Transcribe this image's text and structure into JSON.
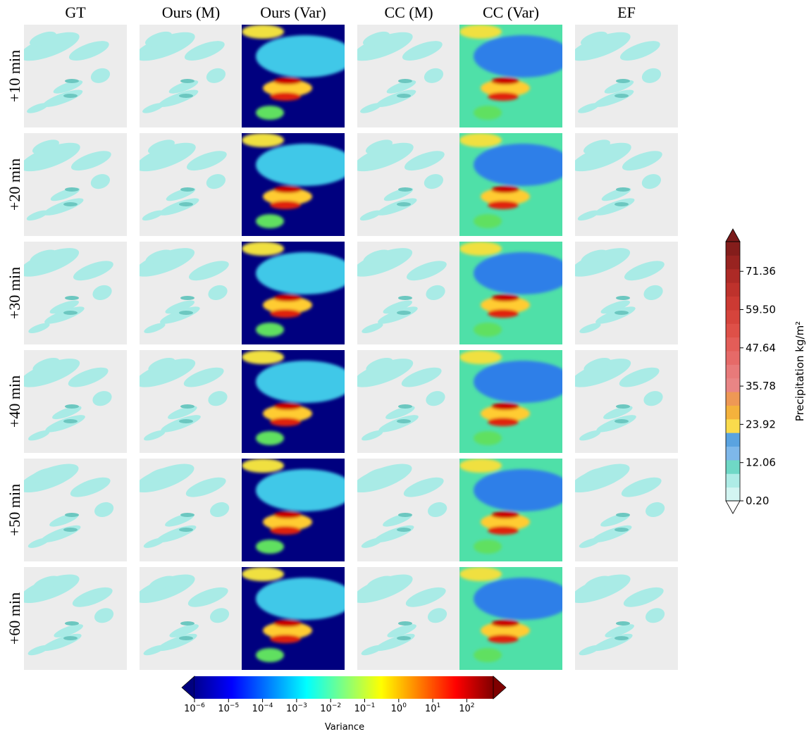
{
  "columns": [
    "GT",
    "Ours (M)",
    "Ours (Var)",
    "CC (M)",
    "CC (Var)",
    "EF"
  ],
  "rows": [
    "+10 min",
    "+20 min",
    "+30 min",
    "+40 min",
    "+50 min",
    "+60 min"
  ],
  "precipitation_colorbar": {
    "label": "Precipitation kg/m²",
    "ticks": [
      "0.20",
      "12.06",
      "23.92",
      "35.78",
      "47.64",
      "59.50",
      "71.36"
    ]
  },
  "variance_colorbar": {
    "label": "Variance",
    "ticks": [
      {
        "base": "10",
        "exponent": "−6"
      },
      {
        "base": "10",
        "exponent": "−5"
      },
      {
        "base": "10",
        "exponent": "−4"
      },
      {
        "base": "10",
        "exponent": "−3"
      },
      {
        "base": "10",
        "exponent": "−2"
      },
      {
        "base": "10",
        "exponent": "−1"
      },
      {
        "base": "10",
        "exponent": "0"
      },
      {
        "base": "10",
        "exponent": "1"
      },
      {
        "base": "10",
        "exponent": "2"
      }
    ]
  }
}
